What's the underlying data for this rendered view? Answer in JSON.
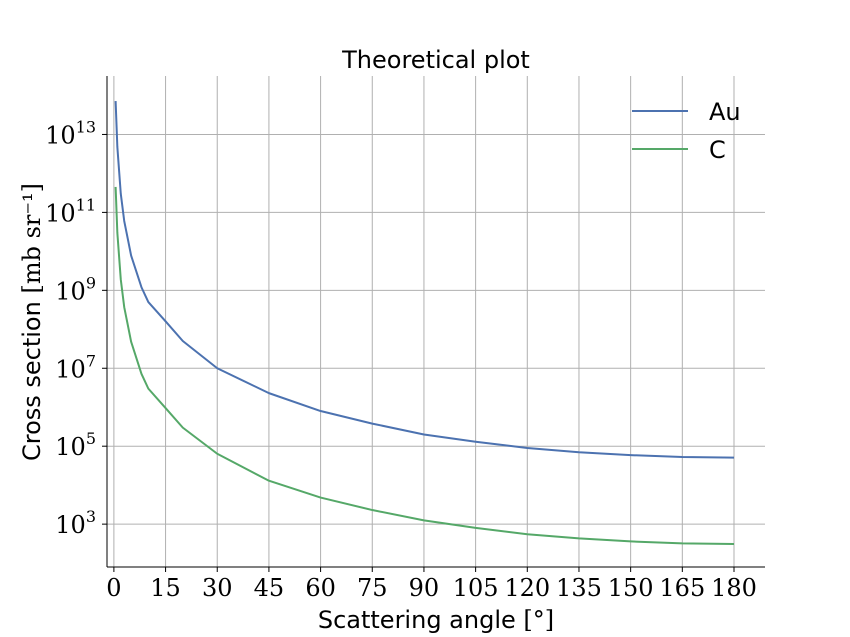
{
  "chart_data": {
    "type": "line",
    "title": "Theoretical plot",
    "xlabel": "Scattering angle",
    "xlabel_unit": "[°]",
    "ylabel": "Cross section",
    "ylabel_unit": "[mb sr⁻¹]",
    "xlim": [
      -2,
      189
    ],
    "ylim_log10": [
      1.9,
      14.5
    ],
    "yscale": "log",
    "grid": true,
    "legend_position": "top-right",
    "x_ticks": [
      0,
      15,
      30,
      45,
      60,
      75,
      90,
      105,
      120,
      135,
      150,
      165,
      180
    ],
    "y_ticks": [
      {
        "base": "10",
        "exp": "3",
        "log10": 3
      },
      {
        "base": "10",
        "exp": "5",
        "log10": 5
      },
      {
        "base": "10",
        "exp": "7",
        "log10": 7
      },
      {
        "base": "10",
        "exp": "9",
        "log10": 9
      },
      {
        "base": "10",
        "exp": "11",
        "log10": 11
      },
      {
        "base": "10",
        "exp": "13",
        "log10": 13
      }
    ],
    "series": [
      {
        "name": "Au",
        "color": "#4c72b0",
        "x": [
          0.5,
          1,
          2,
          3,
          5,
          8,
          10,
          15,
          20,
          30,
          45,
          60,
          75,
          90,
          105,
          120,
          135,
          150,
          165,
          180
        ],
        "y": [
          72000000000000.0,
          4800000000000.0,
          300000000000.0,
          60000000000.0,
          7800000000.0,
          1200000000.0,
          500000000.0,
          160000000.0,
          50000000.0,
          10000000.0,
          2300000.0,
          800000.0,
          380000.0,
          200000.0,
          130000.0,
          90000.0,
          70000.0,
          59000.0,
          53000.0,
          51000.0
        ]
      },
      {
        "name": "C",
        "color": "#55a868",
        "x": [
          0.5,
          1,
          2,
          3,
          5,
          8,
          10,
          15,
          20,
          30,
          45,
          60,
          75,
          90,
          105,
          120,
          135,
          150,
          165,
          180
        ],
        "y": [
          450000000000.0,
          30000000000.0,
          1900000000.0,
          370000000.0,
          48000000.0,
          7200000.0,
          3000000.0,
          950000.0,
          300000.0,
          64000.0,
          13000.0,
          4800.0,
          2300.0,
          1250.0,
          800.0,
          550.0,
          430.0,
          360.0,
          320.0,
          310.0
        ]
      }
    ]
  }
}
